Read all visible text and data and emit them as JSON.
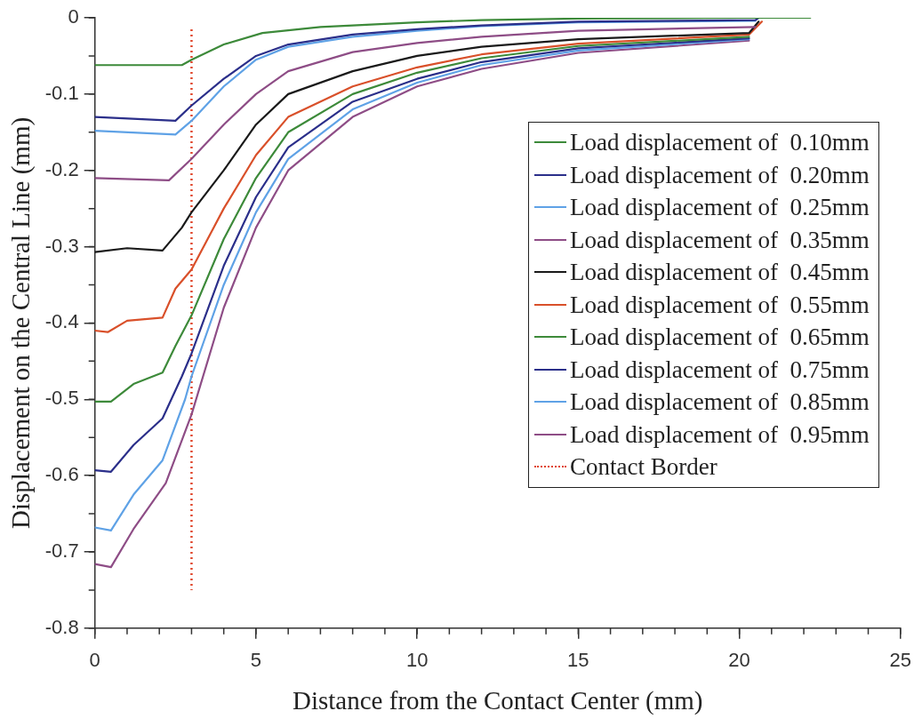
{
  "chart_data": {
    "type": "line",
    "xlabel": "Distance from the Contact Center (mm)",
    "ylabel": "Displacement on the Central Line (mm)",
    "xlim": [
      0,
      25
    ],
    "xticks": [
      0,
      5,
      10,
      15,
      20,
      25
    ],
    "ylim": [
      -0.8,
      0
    ],
    "yticks": [
      -0.8,
      -0.7,
      -0.6,
      -0.5,
      -0.4,
      -0.3,
      -0.2,
      -0.1,
      0
    ],
    "grid": false,
    "legend": "right",
    "marker": "none",
    "line_style": "solid",
    "series": [
      {
        "name": "Load displacement of  0.10mm",
        "color": "#3d8a3a",
        "x": [
          0,
          2.7,
          3,
          4,
          5.2,
          7,
          10,
          12,
          15,
          20,
          22.2
        ],
        "values": [
          -0.062,
          -0.062,
          -0.055,
          -0.035,
          -0.02,
          -0.012,
          -0.006,
          -0.003,
          -0.001,
          0,
          0
        ]
      },
      {
        "name": "Load displacement of  0.20mm",
        "color": "#2b2f8a",
        "x": [
          0,
          2.5,
          3,
          4,
          5,
          6,
          8,
          10,
          12,
          15,
          20.5,
          20.6
        ],
        "values": [
          -0.13,
          -0.135,
          -0.115,
          -0.08,
          -0.05,
          -0.035,
          -0.022,
          -0.015,
          -0.01,
          -0.005,
          -0.003,
          0
        ]
      },
      {
        "name": "Load displacement of  0.25mm",
        "color": "#5fa2e6",
        "x": [
          0,
          2.5,
          3,
          4,
          5,
          6,
          8,
          10,
          12,
          15,
          20.5
        ],
        "values": [
          -0.148,
          -0.153,
          -0.135,
          -0.09,
          -0.055,
          -0.038,
          -0.025,
          -0.017,
          -0.011,
          -0.006,
          -0.004
        ]
      },
      {
        "name": "Load displacement of  0.35mm",
        "color": "#8e4d86",
        "x": [
          0,
          2.3,
          3,
          4,
          5,
          6,
          8,
          10,
          12,
          15,
          20.5
        ],
        "values": [
          -0.21,
          -0.213,
          -0.185,
          -0.14,
          -0.1,
          -0.07,
          -0.045,
          -0.033,
          -0.025,
          -0.017,
          -0.012
        ]
      },
      {
        "name": "Load displacement of  0.45mm",
        "color": "#1a1a1a",
        "x": [
          0,
          1,
          2.1,
          2.7,
          3,
          4,
          5,
          6,
          8,
          10,
          12,
          15,
          20.3,
          20.6
        ],
        "values": [
          -0.307,
          -0.302,
          -0.305,
          -0.275,
          -0.255,
          -0.2,
          -0.14,
          -0.1,
          -0.07,
          -0.05,
          -0.038,
          -0.028,
          -0.02,
          -0.005
        ]
      },
      {
        "name": "Load displacement of  0.55mm",
        "color": "#d9502a",
        "x": [
          0,
          0.4,
          1,
          2.1,
          2.5,
          3,
          4,
          5,
          6,
          8,
          10,
          12,
          15,
          20.3,
          20.7
        ],
        "values": [
          -0.41,
          -0.412,
          -0.397,
          -0.393,
          -0.355,
          -0.33,
          -0.25,
          -0.18,
          -0.13,
          -0.09,
          -0.065,
          -0.048,
          -0.034,
          -0.022,
          -0.005
        ]
      },
      {
        "name": "Load displacement of  0.65mm",
        "color": "#3d8a3a",
        "x": [
          0,
          0.5,
          1.2,
          2.1,
          2.5,
          3,
          4,
          5,
          6,
          8,
          10,
          12,
          15,
          20.3
        ],
        "values": [
          -0.503,
          -0.503,
          -0.48,
          -0.465,
          -0.43,
          -0.39,
          -0.29,
          -0.21,
          -0.15,
          -0.1,
          -0.072,
          -0.053,
          -0.037,
          -0.025
        ]
      },
      {
        "name": "Load displacement of  0.75mm",
        "color": "#2b2f8a",
        "x": [
          0,
          0.5,
          1.2,
          2.1,
          2.7,
          3,
          4,
          5,
          6,
          8,
          10,
          12,
          15,
          20.3
        ],
        "values": [
          -0.593,
          -0.595,
          -0.56,
          -0.525,
          -0.47,
          -0.44,
          -0.325,
          -0.235,
          -0.17,
          -0.11,
          -0.08,
          -0.058,
          -0.04,
          -0.027
        ]
      },
      {
        "name": "Load displacement of  0.85mm",
        "color": "#5fa2e6",
        "x": [
          0,
          0.5,
          1.2,
          2.1,
          2.8,
          3,
          4,
          5,
          6,
          8,
          10,
          12,
          15,
          20.3
        ],
        "values": [
          -0.668,
          -0.672,
          -0.625,
          -0.58,
          -0.5,
          -0.47,
          -0.35,
          -0.255,
          -0.185,
          -0.12,
          -0.085,
          -0.062,
          -0.043,
          -0.028
        ]
      },
      {
        "name": "Load displacement of  0.95mm",
        "color": "#8e4d86",
        "x": [
          0,
          0.5,
          1.2,
          2.2,
          3,
          4,
          5,
          6,
          8,
          10,
          12,
          15,
          20.3
        ],
        "values": [
          -0.716,
          -0.72,
          -0.67,
          -0.61,
          -0.52,
          -0.38,
          -0.275,
          -0.2,
          -0.13,
          -0.09,
          -0.067,
          -0.046,
          -0.03
        ]
      },
      {
        "name": "Contact Border",
        "color": "#e0452a",
        "line_style": "dotted",
        "x": [
          3,
          3
        ],
        "values": [
          -0.015,
          -0.75
        ]
      }
    ]
  }
}
